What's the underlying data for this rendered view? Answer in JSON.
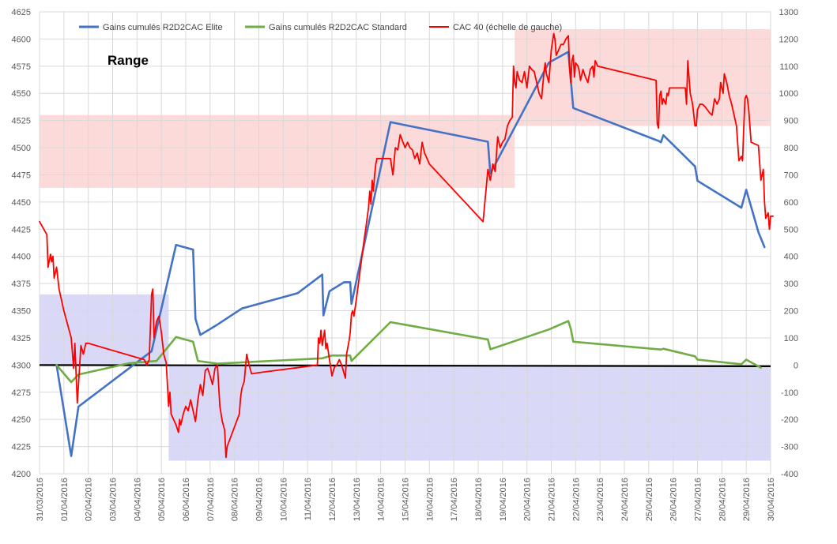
{
  "chart_data": {
    "type": "line",
    "title": "",
    "xlabel": "",
    "ylabel": "",
    "y_left": {
      "min": 4200,
      "max": 4625,
      "step": 25
    },
    "y_right": {
      "min": -400,
      "max": 1300,
      "step": 100
    },
    "x_range": [
      0,
      30
    ],
    "x_ticks": [
      "31/03/2016",
      "01/04/2016",
      "02/04/2016",
      "03/04/2016",
      "04/04/2016",
      "05/04/2016",
      "06/04/2016",
      "07/04/2016",
      "08/04/2016",
      "09/04/2016",
      "10/04/2016",
      "11/04/2016",
      "12/04/2016",
      "13/04/2016",
      "14/04/2016",
      "15/04/2016",
      "16/04/2016",
      "17/04/2016",
      "18/04/2016",
      "19/04/2016",
      "20/04/2016",
      "21/04/2016",
      "22/04/2016",
      "23/04/2016",
      "24/04/2016",
      "25/04/2016",
      "26/04/2016",
      "27/04/2016",
      "28/04/2016",
      "29/04/2016",
      "30/04/2016"
    ],
    "grid": true,
    "legend_position": "top",
    "annotation": "Range",
    "zones": [
      {
        "color": "#fcdada",
        "x0": 0,
        "x1": 19.5,
        "y0": 4463,
        "y1": 4530
      },
      {
        "color": "#fcdada",
        "x0": 19.5,
        "x1": 30,
        "y0": 4520,
        "y1": 4609
      },
      {
        "color": "#d9d9f7",
        "x0": 0,
        "x1": 5.3,
        "y0": 4300,
        "y1": 4365
      },
      {
        "color": "#d9d9f7",
        "x0": 5.3,
        "x1": 30,
        "y0": 4212,
        "y1": 4300
      }
    ],
    "baseline": {
      "y": 4300,
      "color": "#000000"
    },
    "series": [
      {
        "name": "Gains cumulés R2D2CAC Elite",
        "axis": "right",
        "color": "#4472c4",
        "points": [
          [
            0.7,
            0
          ],
          [
            1.3,
            -335
          ],
          [
            1.6,
            -153
          ],
          [
            4.6,
            51
          ],
          [
            5.6,
            442
          ],
          [
            6.3,
            425
          ],
          [
            6.35,
            300
          ],
          [
            6.4,
            170
          ],
          [
            6.6,
            111
          ],
          [
            7.3,
            149
          ],
          [
            8.3,
            208
          ],
          [
            10.6,
            265
          ],
          [
            11.6,
            333
          ],
          [
            11.65,
            183
          ],
          [
            11.9,
            272
          ],
          [
            12.5,
            305
          ],
          [
            12.75,
            305
          ],
          [
            12.8,
            225
          ],
          [
            14.4,
            894
          ],
          [
            18.4,
            822
          ],
          [
            18.5,
            705
          ],
          [
            20.9,
            1113
          ],
          [
            21.7,
            1153
          ],
          [
            21.9,
            946
          ],
          [
            25.4,
            825
          ],
          [
            25.5,
            820
          ],
          [
            25.6,
            846
          ],
          [
            26.9,
            731
          ],
          [
            27.0,
            678
          ],
          [
            28.8,
            579
          ],
          [
            29.0,
            645
          ],
          [
            29.5,
            489
          ],
          [
            29.75,
            434
          ]
        ]
      },
      {
        "name": "Gains cumulés R2D2CAC Standard",
        "axis": "right",
        "color": "#70ad47",
        "points": [
          [
            0.7,
            0
          ],
          [
            1.3,
            -63
          ],
          [
            1.6,
            -35
          ],
          [
            3.7,
            7
          ],
          [
            4.8,
            15
          ],
          [
            5.6,
            103
          ],
          [
            6.3,
            86
          ],
          [
            6.5,
            15
          ],
          [
            7.3,
            5
          ],
          [
            11.6,
            25
          ],
          [
            12.0,
            35
          ],
          [
            12.75,
            35
          ],
          [
            12.8,
            15
          ],
          [
            14.4,
            158
          ],
          [
            18.4,
            94
          ],
          [
            18.5,
            58
          ],
          [
            20.9,
            131
          ],
          [
            21.7,
            162
          ],
          [
            21.8,
            133
          ],
          [
            21.9,
            86
          ],
          [
            25.4,
            58
          ],
          [
            25.5,
            57
          ],
          [
            25.6,
            60
          ],
          [
            26.9,
            32
          ],
          [
            27.0,
            20
          ],
          [
            28.8,
            3
          ],
          [
            29.0,
            20
          ],
          [
            29.6,
            -10
          ]
        ]
      },
      {
        "name": "CAC 40 (échelle de gauche)",
        "axis": "left",
        "color": "#ff0000",
        "points": [
          [
            0,
            4432
          ],
          [
            0.3,
            4420
          ],
          [
            0.35,
            4390
          ],
          [
            0.45,
            4402
          ],
          [
            0.5,
            4395
          ],
          [
            0.55,
            4400
          ],
          [
            0.6,
            4380
          ],
          [
            0.7,
            4390
          ],
          [
            0.8,
            4370
          ],
          [
            1.0,
            4350
          ],
          [
            1.3,
            4325
          ],
          [
            1.4,
            4297
          ],
          [
            1.45,
            4320
          ],
          [
            1.55,
            4265
          ],
          [
            1.7,
            4318
          ],
          [
            1.8,
            4310
          ],
          [
            1.9,
            4320
          ],
          [
            2.0,
            4320
          ],
          [
            4.3,
            4305
          ],
          [
            4.4,
            4300
          ],
          [
            4.5,
            4305
          ],
          [
            4.6,
            4365
          ],
          [
            4.65,
            4370
          ],
          [
            4.7,
            4325
          ],
          [
            4.8,
            4340
          ],
          [
            4.9,
            4345
          ],
          [
            5.0,
            4330
          ],
          [
            5.1,
            4310
          ],
          [
            5.2,
            4302
          ],
          [
            5.3,
            4262
          ],
          [
            5.35,
            4275
          ],
          [
            5.4,
            4255
          ],
          [
            5.5,
            4250
          ],
          [
            5.6,
            4245
          ],
          [
            5.7,
            4238
          ],
          [
            5.75,
            4250
          ],
          [
            5.8,
            4245
          ],
          [
            5.9,
            4255
          ],
          [
            6.0,
            4262
          ],
          [
            6.1,
            4258
          ],
          [
            6.2,
            4268
          ],
          [
            6.3,
            4258
          ],
          [
            6.4,
            4248
          ],
          [
            6.5,
            4268
          ],
          [
            6.6,
            4282
          ],
          [
            6.7,
            4272
          ],
          [
            6.8,
            4295
          ],
          [
            6.9,
            4297
          ],
          [
            7.0,
            4290
          ],
          [
            7.1,
            4282
          ],
          [
            7.2,
            4297
          ],
          [
            7.3,
            4300
          ],
          [
            7.4,
            4262
          ],
          [
            7.5,
            4248
          ],
          [
            7.6,
            4240
          ],
          [
            7.65,
            4215
          ],
          [
            7.7,
            4225
          ],
          [
            8.2,
            4255
          ],
          [
            8.25,
            4270
          ],
          [
            8.3,
            4278
          ],
          [
            8.4,
            4285
          ],
          [
            8.45,
            4297
          ],
          [
            8.5,
            4310
          ],
          [
            8.6,
            4300
          ],
          [
            8.7,
            4292
          ],
          [
            9.0,
            4293
          ],
          [
            11.4,
            4300
          ],
          [
            11.45,
            4325
          ],
          [
            11.5,
            4320
          ],
          [
            11.55,
            4332
          ],
          [
            11.6,
            4318
          ],
          [
            11.65,
            4325
          ],
          [
            11.7,
            4332
          ],
          [
            11.75,
            4315
          ],
          [
            11.8,
            4320
          ],
          [
            12.0,
            4290
          ],
          [
            12.1,
            4298
          ],
          [
            12.2,
            4300
          ],
          [
            12.3,
            4305
          ],
          [
            12.4,
            4300
          ],
          [
            12.5,
            4292
          ],
          [
            12.55,
            4288
          ],
          [
            12.6,
            4310
          ],
          [
            12.7,
            4322
          ],
          [
            12.75,
            4330
          ],
          [
            12.8,
            4347
          ],
          [
            12.85,
            4350
          ],
          [
            12.9,
            4345
          ],
          [
            13.0,
            4360
          ],
          [
            13.3,
            4412
          ],
          [
            13.4,
            4428
          ],
          [
            13.5,
            4445
          ],
          [
            13.55,
            4460
          ],
          [
            13.6,
            4448
          ],
          [
            13.65,
            4470
          ],
          [
            13.7,
            4460
          ],
          [
            13.75,
            4475
          ],
          [
            13.8,
            4485
          ],
          [
            13.85,
            4490
          ],
          [
            14.4,
            4490
          ],
          [
            14.5,
            4475
          ],
          [
            14.6,
            4500
          ],
          [
            14.7,
            4498
          ],
          [
            14.8,
            4512
          ],
          [
            14.9,
            4506
          ],
          [
            15.0,
            4500
          ],
          [
            15.1,
            4505
          ],
          [
            15.2,
            4500
          ],
          [
            15.3,
            4498
          ],
          [
            15.4,
            4490
          ],
          [
            15.5,
            4495
          ],
          [
            15.6,
            4485
          ],
          [
            15.7,
            4505
          ],
          [
            15.8,
            4495
          ],
          [
            15.9,
            4490
          ],
          [
            16.0,
            4485
          ],
          [
            18.2,
            4432
          ],
          [
            18.4,
            4480
          ],
          [
            18.5,
            4470
          ],
          [
            18.6,
            4485
          ],
          [
            18.7,
            4478
          ],
          [
            18.8,
            4510
          ],
          [
            18.9,
            4500
          ],
          [
            19.0,
            4505
          ],
          [
            19.1,
            4508
          ],
          [
            19.2,
            4520
          ],
          [
            19.3,
            4525
          ],
          [
            19.4,
            4528
          ],
          [
            19.45,
            4575
          ],
          [
            19.5,
            4560
          ],
          [
            19.55,
            4555
          ],
          [
            19.6,
            4570
          ],
          [
            19.7,
            4562
          ],
          [
            19.8,
            4560
          ],
          [
            19.9,
            4570
          ],
          [
            20.0,
            4555
          ],
          [
            20.1,
            4575
          ],
          [
            20.2,
            4572
          ],
          [
            20.3,
            4570
          ],
          [
            20.4,
            4560
          ],
          [
            20.5,
            4550
          ],
          [
            20.6,
            4545
          ],
          [
            20.7,
            4570
          ],
          [
            20.75,
            4578
          ],
          [
            20.8,
            4568
          ],
          [
            20.9,
            4560
          ],
          [
            21.0,
            4590
          ],
          [
            21.1,
            4605
          ],
          [
            21.15,
            4600
          ],
          [
            21.2,
            4585
          ],
          [
            21.3,
            4590
          ],
          [
            21.4,
            4595
          ],
          [
            21.5,
            4595
          ],
          [
            21.6,
            4600
          ],
          [
            21.7,
            4603
          ],
          [
            21.75,
            4575
          ],
          [
            21.8,
            4560
          ],
          [
            21.85,
            4580
          ],
          [
            21.9,
            4585
          ],
          [
            21.95,
            4565
          ],
          [
            22.0,
            4578
          ],
          [
            22.1,
            4575
          ],
          [
            22.15,
            4570
          ],
          [
            22.2,
            4562
          ],
          [
            22.3,
            4572
          ],
          [
            22.4,
            4565
          ],
          [
            22.5,
            4560
          ],
          [
            22.6,
            4572
          ],
          [
            22.7,
            4575
          ],
          [
            22.75,
            4565
          ],
          [
            22.8,
            4580
          ],
          [
            22.85,
            4578
          ],
          [
            22.9,
            4575
          ],
          [
            25.3,
            4562
          ],
          [
            25.35,
            4522
          ],
          [
            25.4,
            4518
          ],
          [
            25.45,
            4548
          ],
          [
            25.5,
            4552
          ],
          [
            25.55,
            4540
          ],
          [
            25.6,
            4545
          ],
          [
            25.7,
            4540
          ],
          [
            25.75,
            4550
          ],
          [
            25.8,
            4548
          ],
          [
            25.85,
            4555
          ],
          [
            26.0,
            4555
          ],
          [
            26.5,
            4555
          ],
          [
            26.55,
            4540
          ],
          [
            26.6,
            4580
          ],
          [
            26.7,
            4550
          ],
          [
            26.8,
            4540
          ],
          [
            26.9,
            4520
          ],
          [
            26.95,
            4520
          ],
          [
            27.0,
            4535
          ],
          [
            27.1,
            4540
          ],
          [
            27.2,
            4540
          ],
          [
            27.3,
            4538
          ],
          [
            27.4,
            4535
          ],
          [
            27.5,
            4532
          ],
          [
            27.6,
            4530
          ],
          [
            27.7,
            4545
          ],
          [
            27.8,
            4540
          ],
          [
            27.9,
            4545
          ],
          [
            27.95,
            4560
          ],
          [
            28.0,
            4555
          ],
          [
            28.05,
            4550
          ],
          [
            28.1,
            4568
          ],
          [
            28.2,
            4560
          ],
          [
            28.3,
            4548
          ],
          [
            28.4,
            4540
          ],
          [
            28.5,
            4530
          ],
          [
            28.6,
            4520
          ],
          [
            28.7,
            4488
          ],
          [
            28.8,
            4492
          ],
          [
            28.85,
            4488
          ],
          [
            28.9,
            4520
          ],
          [
            28.95,
            4545
          ],
          [
            29.0,
            4548
          ],
          [
            29.05,
            4545
          ],
          [
            29.1,
            4535
          ],
          [
            29.2,
            4505
          ],
          [
            29.5,
            4502
          ],
          [
            29.6,
            4470
          ],
          [
            29.65,
            4475
          ],
          [
            29.7,
            4480
          ],
          [
            29.75,
            4450
          ],
          [
            29.8,
            4435
          ],
          [
            29.9,
            4440
          ],
          [
            29.95,
            4425
          ],
          [
            30.0,
            4437
          ],
          [
            30.1,
            4437
          ]
        ]
      }
    ]
  }
}
